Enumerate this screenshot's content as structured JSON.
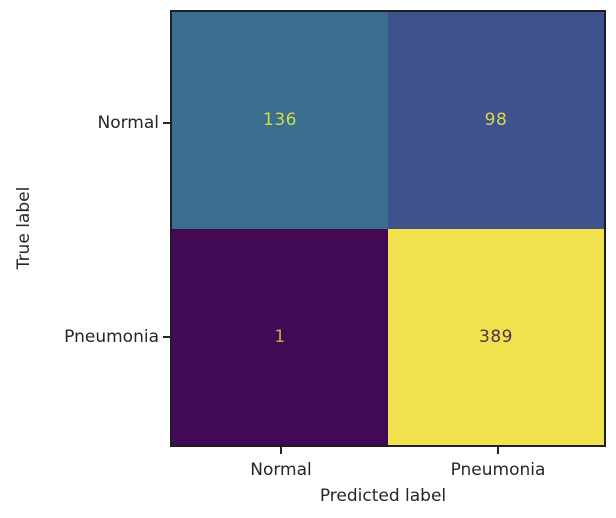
{
  "figure": {
    "background": "#ffffff",
    "frame_color": "#1e1e24",
    "text_color": "#262626"
  },
  "chart_data": {
    "type": "heatmap",
    "variant": "confusion-matrix",
    "colormap": "viridis",
    "title": "",
    "xlabel": "Predicted label",
    "ylabel": "True label",
    "x_tick_labels": [
      "Normal",
      "Pneumonia"
    ],
    "y_tick_labels": [
      "Normal",
      "Pneumonia"
    ],
    "rows": [
      "Normal",
      "Pneumonia"
    ],
    "cols": [
      "Normal",
      "Pneumonia"
    ],
    "matrix": [
      [
        136,
        98
      ],
      [
        1,
        389
      ]
    ],
    "value_range": [
      1,
      389
    ],
    "legend": "none",
    "grid": "off",
    "cells": [
      {
        "true_label": "Normal",
        "predicted_label": "Normal",
        "value": "136",
        "bg": "#3a6e8e",
        "text_color": "#d4da49"
      },
      {
        "true_label": "Normal",
        "predicted_label": "Pneumonia",
        "value": "98",
        "bg": "#3e528e",
        "text_color": "#d4da49"
      },
      {
        "true_label": "Pneumonia",
        "predicted_label": "Normal",
        "value": "1",
        "bg": "#420a55",
        "text_color": "#d2a93d"
      },
      {
        "true_label": "Pneumonia",
        "predicted_label": "Pneumonia",
        "value": "389",
        "bg": "#f1e14d",
        "text_color": "#5b2d4e"
      }
    ]
  }
}
